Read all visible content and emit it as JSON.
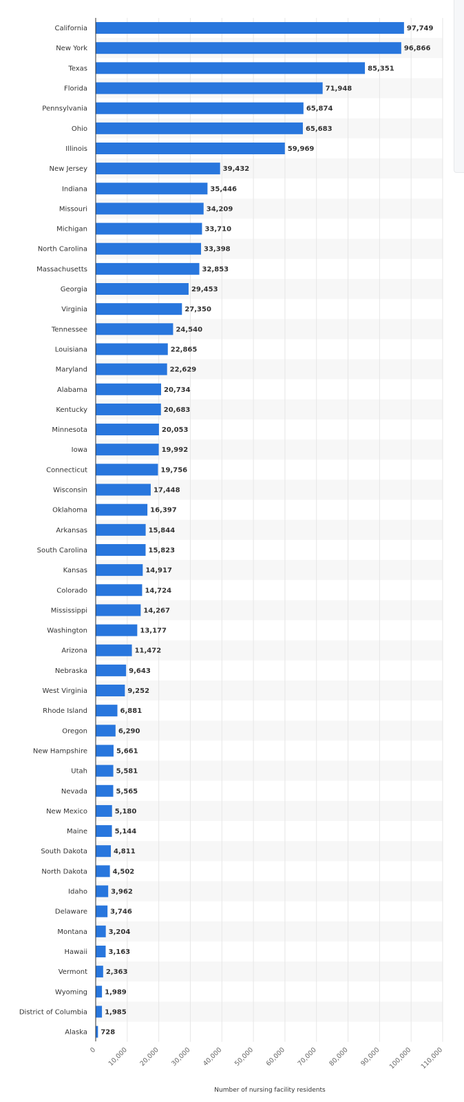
{
  "chart_data": {
    "type": "bar",
    "orientation": "horizontal",
    "categories": [
      "California",
      "New York",
      "Texas",
      "Florida",
      "Pennsylvania",
      "Ohio",
      "Illinois",
      "New Jersey",
      "Indiana",
      "Missouri",
      "Michigan",
      "North Carolina",
      "Massachusetts",
      "Georgia",
      "Virginia",
      "Tennessee",
      "Louisiana",
      "Maryland",
      "Alabama",
      "Kentucky",
      "Minnesota",
      "Iowa",
      "Connecticut",
      "Wisconsin",
      "Oklahoma",
      "Arkansas",
      "South Carolina",
      "Kansas",
      "Colorado",
      "Mississippi",
      "Washington",
      "Arizona",
      "Nebraska",
      "West Virginia",
      "Rhode Island",
      "Oregon",
      "New Hampshire",
      "Utah",
      "Nevada",
      "New Mexico",
      "Maine",
      "South Dakota",
      "North Dakota",
      "Idaho",
      "Delaware",
      "Montana",
      "Hawaii",
      "Vermont",
      "Wyoming",
      "District of Columbia",
      "Alaska"
    ],
    "values": [
      97749,
      96866,
      85351,
      71948,
      65874,
      65683,
      59969,
      39432,
      35446,
      34209,
      33710,
      33398,
      32853,
      29453,
      27350,
      24540,
      22865,
      22629,
      20734,
      20683,
      20053,
      19992,
      19756,
      17448,
      16397,
      15844,
      15823,
      14917,
      14724,
      14267,
      13177,
      11472,
      9643,
      9252,
      6881,
      6290,
      5661,
      5581,
      5565,
      5180,
      5144,
      4811,
      4502,
      3962,
      3746,
      3204,
      3163,
      2363,
      1989,
      1985,
      728
    ],
    "value_labels": [
      "97,749",
      "96,866",
      "85,351",
      "71,948",
      "65,874",
      "65,683",
      "59,969",
      "39,432",
      "35,446",
      "34,209",
      "33,710",
      "33,398",
      "32,853",
      "29,453",
      "27,350",
      "24,540",
      "22,865",
      "22,629",
      "20,734",
      "20,683",
      "20,053",
      "19,992",
      "19,756",
      "17,448",
      "16,397",
      "15,844",
      "15,823",
      "14,917",
      "14,724",
      "14,267",
      "13,177",
      "11,472",
      "9,643",
      "9,252",
      "6,881",
      "6,290",
      "5,661",
      "5,581",
      "5,565",
      "5,180",
      "5,144",
      "4,811",
      "4,502",
      "3,962",
      "3,746",
      "3,204",
      "3,163",
      "2,363",
      "1,989",
      "1,985",
      "728"
    ],
    "xticks": [
      "0",
      "10,000",
      "20,000",
      "30,000",
      "40,000",
      "50,000",
      "60,000",
      "70,000",
      "80,000",
      "90,000",
      "100,000",
      "110,000"
    ],
    "xlim": [
      0,
      110000
    ],
    "xlabel": "Number of nursing facility residents",
    "ylabel": "",
    "title": "",
    "grid": true,
    "bar_color": "#2876dd",
    "stripe_color": "#f7f7f7",
    "grid_color": "#e6e6e6"
  }
}
